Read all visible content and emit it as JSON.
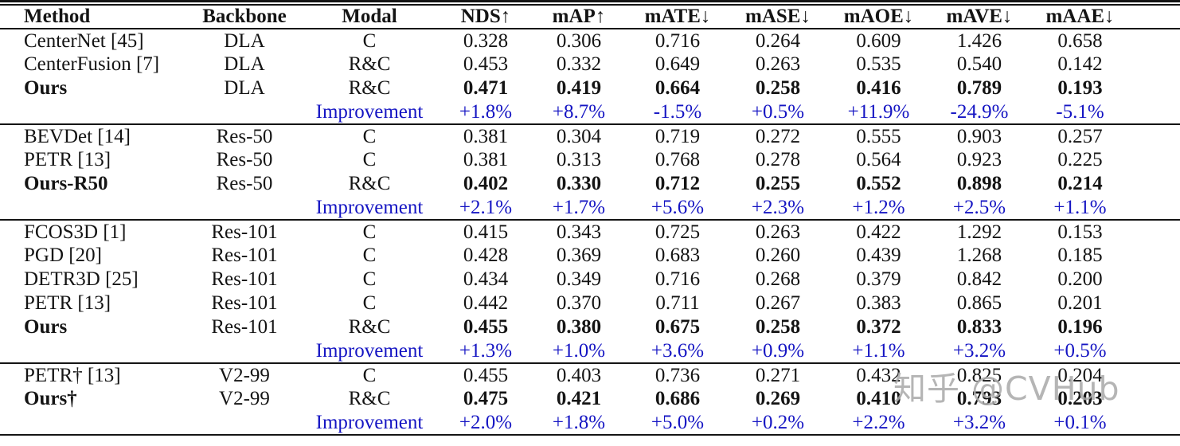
{
  "table": {
    "headers": [
      "Method",
      "Backbone",
      "Modal",
      "NDS↑",
      "mAP↑",
      "mATE↓",
      "mASE↓",
      "mAOE↓",
      "mAVE↓",
      "mAAE↓"
    ],
    "sections": [
      {
        "rows": [
          {
            "method": "CenterNet [45]",
            "backbone": "DLA",
            "modal": "C",
            "v": [
              "0.328",
              "0.306",
              "0.716",
              "0.264",
              "0.609",
              "1.426",
              "0.658"
            ],
            "emphasis": "normal"
          },
          {
            "method": "CenterFusion [7]",
            "backbone": "DLA",
            "modal": "R&C",
            "v": [
              "0.453",
              "0.332",
              "0.649",
              "0.263",
              "0.535",
              "0.540",
              "0.142"
            ],
            "emphasis": "normal"
          },
          {
            "method": "Ours",
            "backbone": "DLA",
            "modal": "R&C",
            "v": [
              "0.471",
              "0.419",
              "0.664",
              "0.258",
              "0.416",
              "0.789",
              "0.193"
            ],
            "emphasis": "bold"
          },
          {
            "method": "",
            "backbone": "",
            "modal": "Improvement",
            "v": [
              "+1.8%",
              "+8.7%",
              "-1.5%",
              "+0.5%",
              "+11.9%",
              "-24.9%",
              "-5.1%"
            ],
            "emphasis": "improvement"
          }
        ]
      },
      {
        "rows": [
          {
            "method": "BEVDet [14]",
            "backbone": "Res-50",
            "modal": "C",
            "v": [
              "0.381",
              "0.304",
              "0.719",
              "0.272",
              "0.555",
              "0.903",
              "0.257"
            ],
            "emphasis": "normal"
          },
          {
            "method": "PETR [13]",
            "backbone": "Res-50",
            "modal": "C",
            "v": [
              "0.381",
              "0.313",
              "0.768",
              "0.278",
              "0.564",
              "0.923",
              "0.225"
            ],
            "emphasis": "normal"
          },
          {
            "method": "Ours-R50",
            "backbone": "Res-50",
            "modal": "R&C",
            "v": [
              "0.402",
              "0.330",
              "0.712",
              "0.255",
              "0.552",
              "0.898",
              "0.214"
            ],
            "emphasis": "bold"
          },
          {
            "method": "",
            "backbone": "",
            "modal": "Improvement",
            "v": [
              "+2.1%",
              "+1.7%",
              "+5.6%",
              "+2.3%",
              "+1.2%",
              "+2.5%",
              "+1.1%"
            ],
            "emphasis": "improvement"
          }
        ]
      },
      {
        "rows": [
          {
            "method": "FCOS3D [1]",
            "backbone": "Res-101",
            "modal": "C",
            "v": [
              "0.415",
              "0.343",
              "0.725",
              "0.263",
              "0.422",
              "1.292",
              "0.153"
            ],
            "emphasis": "normal"
          },
          {
            "method": "PGD [20]",
            "backbone": "Res-101",
            "modal": "C",
            "v": [
              "0.428",
              "0.369",
              "0.683",
              "0.260",
              "0.439",
              "1.268",
              "0.185"
            ],
            "emphasis": "normal"
          },
          {
            "method": "DETR3D [25]",
            "backbone": "Res-101",
            "modal": "C",
            "v": [
              "0.434",
              "0.349",
              "0.716",
              "0.268",
              "0.379",
              "0.842",
              "0.200"
            ],
            "emphasis": "normal"
          },
          {
            "method": "PETR [13]",
            "backbone": "Res-101",
            "modal": "C",
            "v": [
              "0.442",
              "0.370",
              "0.711",
              "0.267",
              "0.383",
              "0.865",
              "0.201"
            ],
            "emphasis": "normal"
          },
          {
            "method": "Ours",
            "backbone": "Res-101",
            "modal": "R&C",
            "v": [
              "0.455",
              "0.380",
              "0.675",
              "0.258",
              "0.372",
              "0.833",
              "0.196"
            ],
            "emphasis": "bold"
          },
          {
            "method": "",
            "backbone": "",
            "modal": "Improvement",
            "v": [
              "+1.3%",
              "+1.0%",
              "+3.6%",
              "+0.9%",
              "+1.1%",
              "+3.2%",
              "+0.5%"
            ],
            "emphasis": "improvement"
          }
        ]
      },
      {
        "rows": [
          {
            "method": "PETR† [13]",
            "backbone": "V2-99",
            "modal": "C",
            "v": [
              "0.455",
              "0.403",
              "0.736",
              "0.271",
              "0.432",
              "0.825",
              "0.204"
            ],
            "emphasis": "normal"
          },
          {
            "method": "Ours†",
            "backbone": "V2-99",
            "modal": "R&C",
            "v": [
              "0.475",
              "0.421",
              "0.686",
              "0.269",
              "0.410",
              "0.793",
              "0.203"
            ],
            "emphasis": "bold"
          },
          {
            "method": "",
            "backbone": "",
            "modal": "Improvement",
            "v": [
              "+2.0%",
              "+1.8%",
              "+5.0%",
              "+0.2%",
              "+2.2%",
              "+3.2%",
              "+0.1%"
            ],
            "emphasis": "improvement"
          }
        ]
      }
    ]
  },
  "watermark": {
    "text": "知乎 @CVHub"
  },
  "colors": {
    "text": "#141414",
    "rule": "#141414",
    "improvement_blue": "#1515c3",
    "watermark_gray": "#a8a8a8"
  }
}
